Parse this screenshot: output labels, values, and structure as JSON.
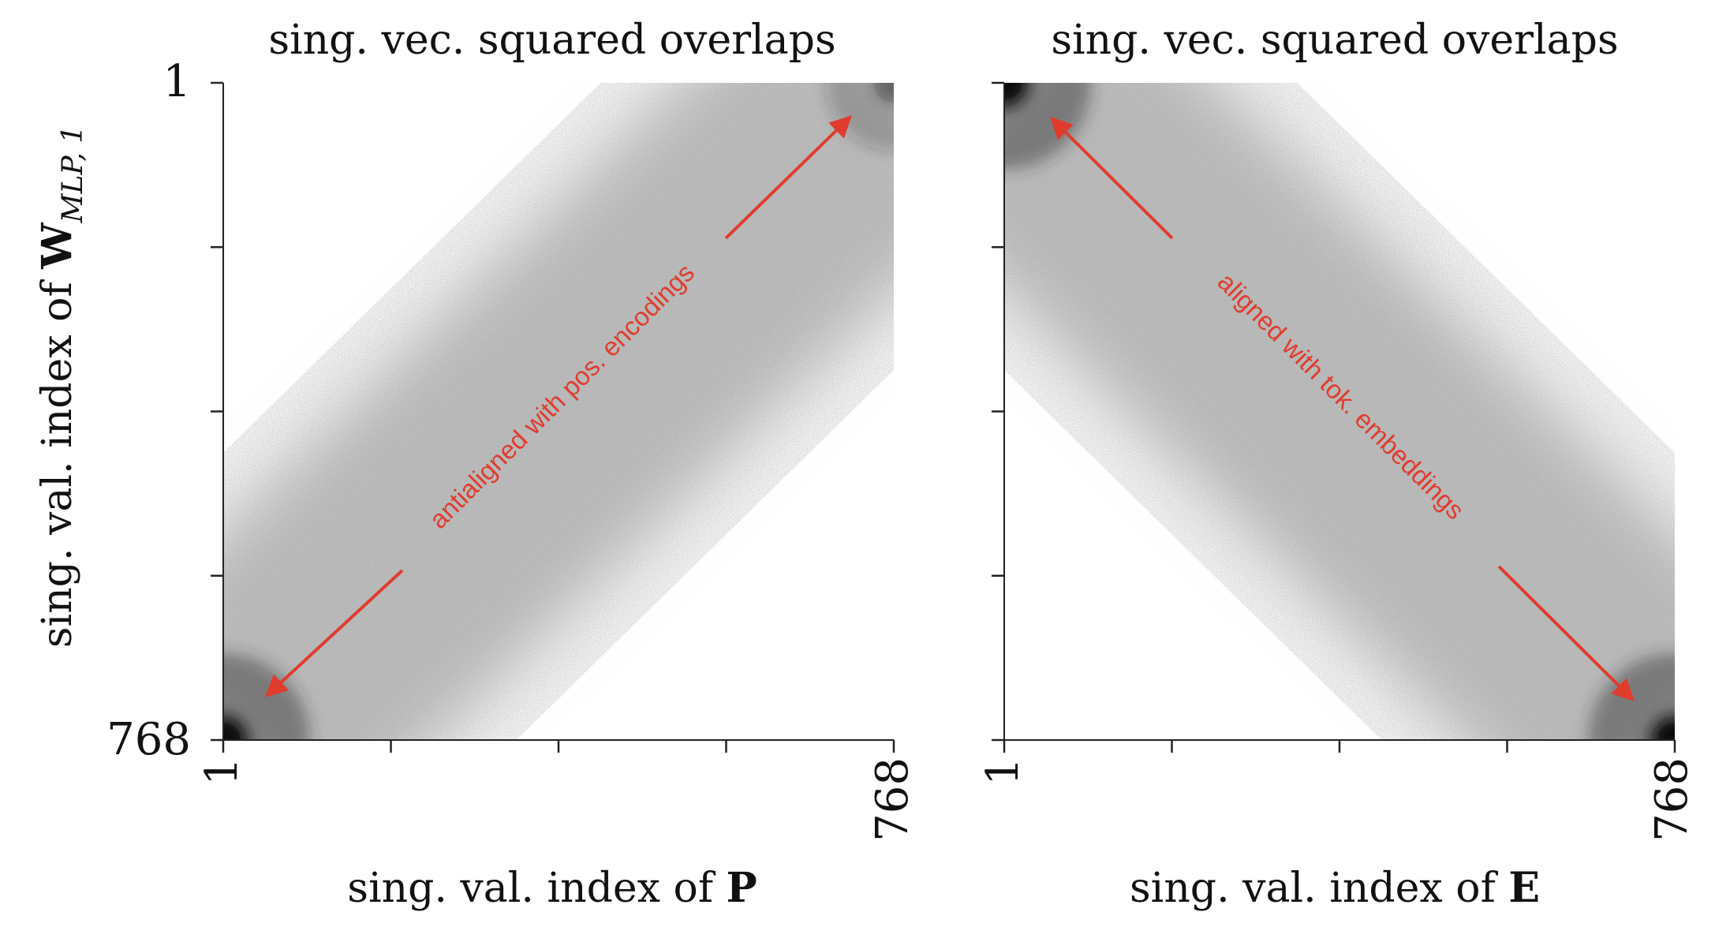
{
  "chart_data": [
    {
      "type": "heatmap",
      "title": "sing. vec. squared overlaps",
      "xlabel_prefix": "sing. val. index of ",
      "xlabel_symbol": "P",
      "ylabel_prefix": "sing. val. index of ",
      "ylabel_symbol": "W",
      "ylabel_subscript": "MLP, 1",
      "x_range": [
        1,
        768
      ],
      "y_range": [
        1,
        768
      ],
      "x_tick_labels": [
        "1",
        "768"
      ],
      "y_tick_labels": [
        "1",
        "768"
      ],
      "num_ticks": 5,
      "colormap": "greys",
      "dominant_structure": "anti-diagonal",
      "hotspots": [
        {
          "x": 1,
          "y": 768,
          "intensity": 1.0
        },
        {
          "x": 768,
          "y": 1,
          "intensity": 0.4
        }
      ],
      "annotation": {
        "text": "antialigned with pos. encodings",
        "from": [
          768,
          1
        ],
        "to": [
          1,
          768
        ],
        "color": "#e03c2e"
      }
    },
    {
      "type": "heatmap",
      "title": "sing. vec. squared overlaps",
      "xlabel_prefix": "sing. val. index of ",
      "xlabel_symbol": "E",
      "ylabel_prefix": "",
      "ylabel_symbol": "",
      "ylabel_subscript": "",
      "x_range": [
        1,
        768
      ],
      "y_range": [
        1,
        768
      ],
      "x_tick_labels": [
        "1",
        "768"
      ],
      "y_tick_labels": [],
      "num_ticks": 5,
      "colormap": "greys",
      "dominant_structure": "diagonal",
      "hotspots": [
        {
          "x": 1,
          "y": 1,
          "intensity": 1.0
        },
        {
          "x": 768,
          "y": 768,
          "intensity": 1.0
        }
      ],
      "annotation": {
        "text": "aligned with tok. embeddings",
        "from": [
          1,
          1
        ],
        "to": [
          768,
          768
        ],
        "color": "#e03c2e"
      }
    }
  ]
}
